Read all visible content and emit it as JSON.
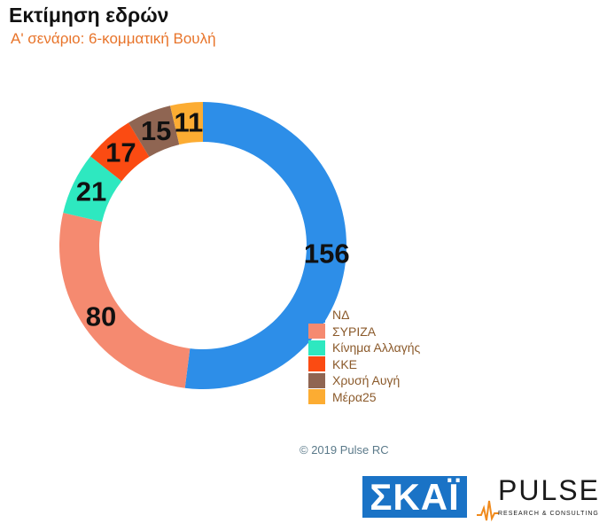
{
  "title": "Εκτίμηση εδρών",
  "subtitle": "Α' σενάριο: 6-κομματική Βουλή",
  "copyright": "© 2019 Pulse RC",
  "logos": {
    "skai": "ΣΚΑΪ",
    "pulse": "PULSE",
    "pulse_sub": "RESEARCH & CONSULTING"
  },
  "chart_data": {
    "type": "pie",
    "donut": true,
    "title": "Εκτίμηση εδρών",
    "subtitle": "Α' σενάριο: 6-κομματική Βουλή",
    "legend_position": "bottom-right",
    "categories": [
      "ΝΔ",
      "ΣΥΡΙΖΑ",
      "Κίνημα Αλλαγής",
      "ΚΚΕ",
      "Χρυσή Αυγή",
      "Μέρα25"
    ],
    "values": [
      156,
      80,
      21,
      17,
      15,
      11
    ],
    "colors": [
      "#2d8ee8",
      "#f58a70",
      "#2ee8c0",
      "#fb4b12",
      "#8f6552",
      "#fcac32"
    ]
  }
}
